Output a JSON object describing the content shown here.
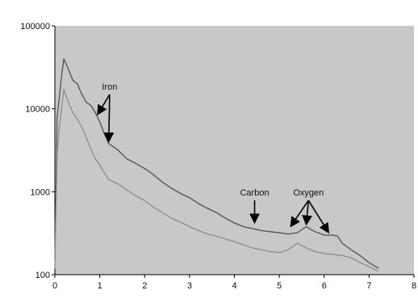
{
  "chart_data": {
    "type": "line",
    "title": "",
    "xlabel": "",
    "ylabel": "",
    "x_scale": "linear",
    "y_scale": "log",
    "xlim": [
      0,
      8
    ],
    "ylim": [
      100,
      100000
    ],
    "grid": false,
    "legend": "none",
    "plot_background": "#c8c8c8",
    "x_ticks": [
      "0",
      "1",
      "2",
      "3",
      "4",
      "5",
      "6",
      "7",
      "8"
    ],
    "y_ticks": [
      "100",
      "1000",
      "10000",
      "100000"
    ],
    "y_tick_values": [
      100,
      1000,
      10000,
      100000
    ],
    "series": [
      {
        "color": "#505050",
        "x": [
          0.0,
          0.05,
          0.1,
          0.15,
          0.2,
          0.3,
          0.4,
          0.5,
          0.6,
          0.7,
          0.8,
          0.9,
          1.0,
          1.1,
          1.2,
          1.4,
          1.6,
          1.8,
          2.0,
          2.2,
          2.4,
          2.6,
          2.8,
          3.0,
          3.2,
          3.4,
          3.6,
          3.8,
          4.0,
          4.2,
          4.4,
          4.6,
          4.8,
          5.0,
          5.2,
          5.4,
          5.6,
          5.7,
          5.8,
          6.0,
          6.2,
          6.3,
          6.4,
          6.6,
          6.8,
          7.0,
          7.2
        ],
        "y": [
          150,
          8000,
          14000,
          25000,
          40000,
          30000,
          22000,
          20000,
          15000,
          12000,
          11000,
          9000,
          7000,
          5000,
          3800,
          3200,
          2500,
          2200,
          1900,
          1600,
          1300,
          1100,
          950,
          850,
          720,
          630,
          560,
          480,
          420,
          380,
          360,
          340,
          330,
          320,
          310,
          320,
          380,
          350,
          330,
          300,
          300,
          290,
          240,
          200,
          170,
          140,
          120
        ]
      },
      {
        "color": "#8c8c8c",
        "x": [
          0.0,
          0.05,
          0.1,
          0.15,
          0.2,
          0.3,
          0.4,
          0.5,
          0.6,
          0.7,
          0.8,
          0.9,
          1.0,
          1.1,
          1.2,
          1.4,
          1.6,
          1.8,
          2.0,
          2.2,
          2.4,
          2.6,
          2.8,
          3.0,
          3.2,
          3.4,
          3.6,
          3.8,
          4.0,
          4.2,
          4.4,
          4.6,
          4.8,
          5.0,
          5.2,
          5.4,
          5.6,
          5.8,
          6.0,
          6.2,
          6.4,
          6.6,
          6.8,
          7.0,
          7.2
        ],
        "y": [
          120,
          3000,
          6000,
          10000,
          17000,
          12000,
          9000,
          7500,
          6000,
          4500,
          3300,
          2500,
          2100,
          1700,
          1400,
          1250,
          1050,
          900,
          780,
          650,
          560,
          480,
          430,
          380,
          340,
          310,
          290,
          270,
          250,
          230,
          210,
          200,
          190,
          185,
          200,
          240,
          210,
          190,
          180,
          175,
          170,
          160,
          140,
          125,
          110
        ]
      }
    ],
    "annotations": [
      {
        "label": "Iron",
        "label_x": 1.22,
        "label_y": 17000,
        "arrows": [
          {
            "x": 0.95,
            "y": 8500
          },
          {
            "x": 1.2,
            "y": 4000
          }
        ]
      },
      {
        "label": "Carbon",
        "label_x": 4.45,
        "label_y": 900,
        "arrows": [
          {
            "x": 4.45,
            "y": 420
          }
        ]
      },
      {
        "label": "Oxygen",
        "label_x": 5.65,
        "label_y": 900,
        "arrows": [
          {
            "x": 5.25,
            "y": 380
          },
          {
            "x": 5.6,
            "y": 400
          },
          {
            "x": 6.1,
            "y": 320
          }
        ]
      }
    ]
  }
}
